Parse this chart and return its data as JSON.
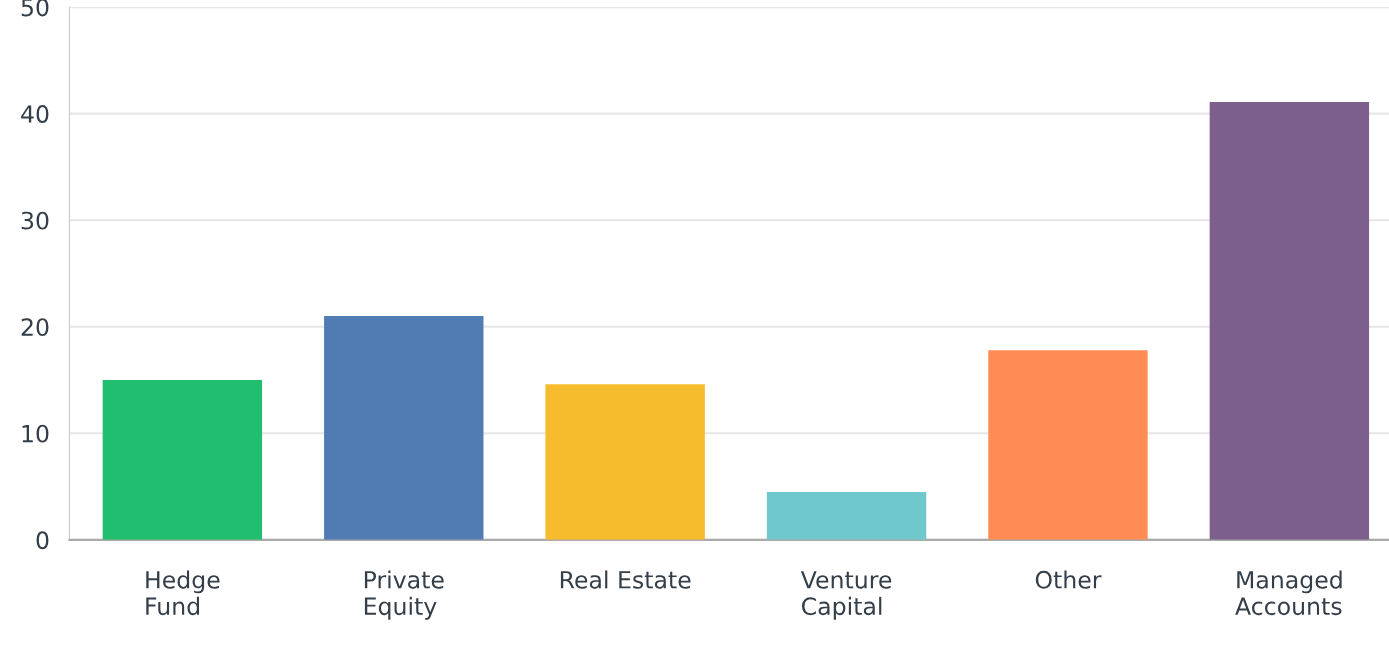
{
  "chart_data": {
    "type": "bar",
    "categories": [
      "Hedge\nFund",
      "Private\nEquity",
      "Real Estate",
      "Venture\nCapital",
      "Other",
      "Managed\nAccounts"
    ],
    "values": [
      15.0,
      21.0,
      14.6,
      4.5,
      17.8,
      41.1
    ],
    "colors": [
      "#1fbf6f",
      "#507cb3",
      "#f6bc2e",
      "#6ec8cc",
      "#ff8c55",
      "#7c5f8c"
    ],
    "ylim": [
      0,
      50
    ],
    "yticks": [
      0,
      10,
      20,
      30,
      40,
      50
    ],
    "grid": "y",
    "legend": false
  }
}
